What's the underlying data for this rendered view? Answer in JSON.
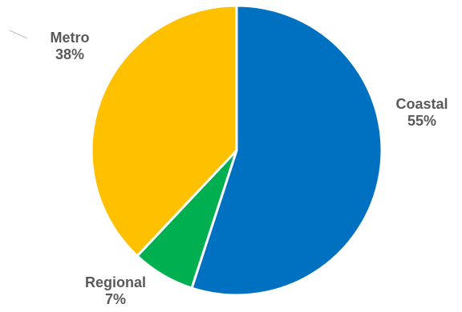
{
  "chart_data": {
    "type": "pie",
    "title": "",
    "start_angle_deg": 0,
    "direction": "clockwise",
    "legend": "none",
    "slices": [
      {
        "name": "Coastal",
        "value": 55,
        "label": "55%",
        "color": "#0070C0"
      },
      {
        "name": "Regional",
        "value": 7,
        "label": "7%",
        "color": "#00B050"
      },
      {
        "name": "Metro",
        "value": 38,
        "label": "38%",
        "color": "#FFC000"
      }
    ],
    "slice_border_color": "#FFFFFF",
    "label_color": "#595959",
    "leader_line_color": "#BFBFBF"
  }
}
